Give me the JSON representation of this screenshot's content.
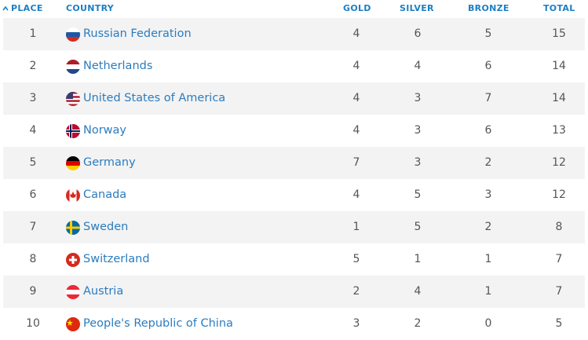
{
  "table": {
    "header": [
      "PLACE",
      "COUNTRY",
      "GOLD",
      "SILVER",
      "BRONZE",
      "TOTAL"
    ],
    "rows": [
      [
        1,
        "Russian Federation",
        4,
        6,
        5,
        15
      ],
      [
        2,
        "Netherlands",
        4,
        4,
        6,
        14
      ],
      [
        3,
        "United States of America",
        4,
        3,
        7,
        14
      ],
      [
        4,
        "Norway",
        4,
        3,
        6,
        13
      ],
      [
        5,
        "Germany",
        7,
        3,
        2,
        12
      ],
      [
        6,
        "Canada",
        4,
        5,
        3,
        12
      ],
      [
        7,
        "Sweden",
        1,
        5,
        2,
        8
      ],
      [
        8,
        "Switzerland",
        5,
        1,
        1,
        7
      ],
      [
        9,
        "Austria",
        2,
        4,
        1,
        7
      ],
      [
        10,
        "People's Republic of China",
        3,
        2,
        0,
        5
      ]
    ]
  }
}
